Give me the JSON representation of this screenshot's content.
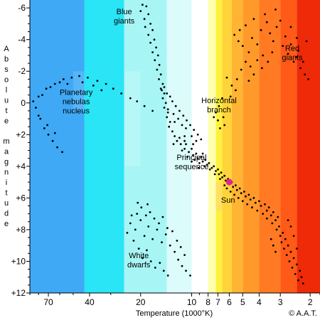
{
  "chart_data": {
    "type": "scatter",
    "title": "",
    "xlabel": "Temperature (1000°K)",
    "ylabel": "Absolute magnitude",
    "ylabel_letters": [
      "A",
      "b",
      "s",
      "o",
      "l",
      "u",
      "t",
      "e",
      "",
      "m",
      "a",
      "g",
      "n",
      "i",
      "t",
      "u",
      "d",
      "e"
    ],
    "x_scale": "log",
    "x_reversed": true,
    "xlim": [
      90,
      1.75
    ],
    "ylim": [
      12,
      -6.5
    ],
    "y_reversed": true,
    "x_ticks": [
      70,
      40,
      20,
      10,
      8,
      7,
      6,
      5,
      4,
      3,
      2
    ],
    "x_tick_labels": [
      "70",
      "40",
      "20",
      "10",
      "8",
      "7",
      "6",
      "5",
      "4",
      "3",
      "2"
    ],
    "y_ticks": [
      -6,
      -4,
      -2,
      0,
      2,
      4,
      6,
      8,
      10,
      12
    ],
    "y_tick_labels": [
      "-6",
      "-4",
      "-2",
      "0",
      "+2",
      "+4",
      "+6",
      "+8",
      "+10",
      "+12"
    ],
    "grid": false,
    "background_bands": [
      {
        "from": 90,
        "to": 43,
        "color": "#3fa9f5"
      },
      {
        "from": 43,
        "to": 25,
        "color": "#29e5f5"
      },
      {
        "from": 25,
        "to": 14,
        "color": "#a8f5f5"
      },
      {
        "from": 14,
        "to": 10,
        "color": "#dcfbfb"
      },
      {
        "from": 10,
        "to": 8,
        "color": "#ffffff"
      },
      {
        "from": 8,
        "to": 7.2,
        "color": "#ffffb0"
      },
      {
        "from": 7.2,
        "to": 6.6,
        "color": "#fff040"
      },
      {
        "from": 6.6,
        "to": 5.8,
        "color": "#ffd33a"
      },
      {
        "from": 5.8,
        "to": 5.0,
        "color": "#ffb433"
      },
      {
        "from": 5.0,
        "to": 4.0,
        "color": "#ff9a2a"
      },
      {
        "from": 4.0,
        "to": 3.0,
        "color": "#ff7a22"
      },
      {
        "from": 3.0,
        "to": 2.4,
        "color": "#ff5a18"
      },
      {
        "from": 2.4,
        "to": 1.75,
        "color": "#ee2a08"
      }
    ],
    "series": [
      {
        "points": [
          [
            19.5,
            -6.2
          ],
          [
            18.5,
            -6.1
          ],
          [
            20,
            -5.8
          ],
          [
            18,
            -5.6
          ],
          [
            19,
            -5.3
          ],
          [
            17.5,
            -5
          ],
          [
            18.8,
            -4.8
          ],
          [
            17,
            -4.6
          ],
          [
            18,
            -4.3
          ],
          [
            16.6,
            -4
          ],
          [
            17.5,
            -3.8
          ],
          [
            16.2,
            -3.5
          ],
          [
            17,
            -3.2
          ],
          [
            15.8,
            -3
          ],
          [
            16.5,
            -2.7
          ],
          [
            15.5,
            -2.4
          ],
          [
            16,
            -2.1
          ],
          [
            15.2,
            -1.8
          ],
          [
            15.6,
            -1.5
          ],
          [
            14.8,
            -1.2
          ],
          [
            15.2,
            -0.9
          ],
          [
            14.5,
            -0.6
          ],
          [
            14.8,
            -0.3
          ],
          [
            14.2,
            0
          ],
          [
            14.5,
            0.3
          ],
          [
            13.8,
            0.6
          ],
          [
            14,
            0.9
          ],
          [
            13.4,
            1.2
          ],
          [
            13.6,
            1.5
          ],
          [
            13,
            1.8
          ],
          [
            12.6,
            2.1
          ],
          [
            12.2,
            2.4
          ],
          [
            11.6,
            2.6
          ],
          [
            11,
            2.9
          ],
          [
            10.4,
            3.1
          ],
          [
            9.8,
            3.3
          ],
          [
            9.2,
            3.5
          ],
          [
            8.6,
            3.7
          ],
          [
            8.1,
            3.9
          ],
          [
            7.6,
            4.1
          ],
          [
            7.2,
            4.3
          ],
          [
            6.9,
            4.5
          ],
          [
            6.6,
            4.7
          ],
          [
            6.3,
            4.9
          ],
          [
            6,
            5.1
          ],
          [
            5.7,
            5.3
          ],
          [
            5.4,
            5.5
          ],
          [
            5.1,
            5.7
          ],
          [
            4.8,
            5.9
          ],
          [
            4.5,
            6.1
          ],
          [
            4.2,
            6.3
          ],
          [
            3.9,
            6.5
          ],
          [
            3.6,
            6.8
          ],
          [
            3.4,
            7.1
          ],
          [
            3.2,
            7.4
          ],
          [
            3.05,
            7.8
          ],
          [
            2.9,
            8.2
          ],
          [
            2.8,
            8.6
          ],
          [
            2.7,
            9
          ],
          [
            2.6,
            9.4
          ],
          [
            2.5,
            9.8
          ],
          [
            2.4,
            10.2
          ],
          [
            2.3,
            10.6
          ],
          [
            2.25,
            11
          ],
          [
            2.2,
            11.4
          ],
          [
            11.8,
            2.2
          ],
          [
            10.8,
            2.6
          ],
          [
            10,
            2.9
          ],
          [
            9.4,
            3.2
          ],
          [
            8.8,
            3.4
          ],
          [
            8.3,
            3.6
          ],
          [
            7.9,
            3.8
          ],
          [
            7.4,
            4
          ],
          [
            7,
            4.2
          ],
          [
            6.7,
            4.4
          ],
          [
            6.4,
            4.6
          ],
          [
            6.1,
            4.8
          ],
          [
            5.8,
            5
          ],
          [
            5.5,
            5.2
          ],
          [
            5.2,
            5.4
          ],
          [
            4.9,
            5.6
          ],
          [
            4.6,
            5.8
          ],
          [
            4.3,
            6
          ],
          [
            4,
            6.2
          ],
          [
            3.7,
            6.4
          ],
          [
            3.5,
            6.6
          ],
          [
            3.3,
            6.9
          ],
          [
            3.1,
            7.2
          ],
          [
            12.8,
            2.6
          ],
          [
            11.4,
            3
          ],
          [
            10.6,
            3.4
          ],
          [
            9.6,
            3.6
          ],
          [
            9,
            3.8
          ],
          [
            8.4,
            4
          ],
          [
            7.8,
            4.2
          ],
          [
            7.3,
            4.5
          ],
          [
            6.8,
            4.8
          ],
          [
            6.4,
            5.2
          ],
          [
            6.2,
            5.4
          ],
          [
            5.9,
            5.6
          ],
          [
            5.6,
            5.8
          ],
          [
            5.3,
            6
          ],
          [
            5,
            6.2
          ],
          [
            4.7,
            6.4
          ],
          [
            4.4,
            6.6
          ],
          [
            4.1,
            6.8
          ],
          [
            3.8,
            7
          ],
          [
            3.6,
            7.3
          ],
          [
            3.35,
            7.6
          ],
          [
            3.15,
            8
          ],
          [
            3,
            8.4
          ],
          [
            2.95,
            8.8
          ],
          [
            2.85,
            9.2
          ],
          [
            2.75,
            9.6
          ],
          [
            2.65,
            10
          ],
          [
            2.55,
            10.4
          ],
          [
            2.45,
            10.8
          ],
          [
            2.35,
            11.2
          ],
          [
            3.4,
            8.6
          ],
          [
            3.3,
            9
          ],
          [
            3.2,
            9.4
          ],
          [
            2.4,
            9.2
          ],
          [
            2.5,
            8.4
          ],
          [
            2.6,
            7.8
          ],
          [
            2.7,
            7.4
          ],
          [
            8.6,
            3.2
          ],
          [
            9.8,
            2.6
          ],
          [
            11,
            2.4
          ],
          [
            10,
            3.7
          ],
          [
            9.1,
            4.1
          ]
        ]
      },
      {
        "points": [
          [
            14.5,
            -1
          ],
          [
            14,
            -0.6
          ],
          [
            13.4,
            -0.4
          ],
          [
            13,
            -0.1
          ],
          [
            12.4,
            0.2
          ],
          [
            11.8,
            0.5
          ],
          [
            11.2,
            0.8
          ],
          [
            10.7,
            1.1
          ],
          [
            10.2,
            1.4
          ],
          [
            9.7,
            1.7
          ],
          [
            9.2,
            2
          ],
          [
            8.8,
            2.3
          ],
          [
            12.8,
            0.7
          ],
          [
            12,
            1
          ],
          [
            11.4,
            1.4
          ],
          [
            10.8,
            1.6
          ],
          [
            10,
            2.1
          ],
          [
            9.4,
            2.4
          ],
          [
            15,
            -0.8
          ],
          [
            13.8,
            0.4
          ],
          [
            12.6,
            1.2
          ],
          [
            11,
            2.1
          ]
        ]
      },
      {
        "points": [
          [
            80,
            -0.4
          ],
          [
            72,
            -0.9
          ],
          [
            64,
            -1.2
          ],
          [
            57,
            -1.5
          ],
          [
            51,
            -1.6
          ],
          [
            46,
            -1.7
          ],
          [
            41,
            -1.6
          ],
          [
            36,
            -1.4
          ],
          [
            32,
            -1.2
          ],
          [
            29,
            -0.9
          ],
          [
            26,
            -0.6
          ],
          [
            23,
            -0.3
          ],
          [
            21,
            -0.1
          ],
          [
            19,
            0.2
          ],
          [
            17,
            0.5
          ],
          [
            83,
            0.3
          ],
          [
            78,
            1
          ],
          [
            74,
            1.6
          ],
          [
            70,
            2
          ],
          [
            66,
            2.4
          ],
          [
            62,
            2.8
          ],
          [
            58,
            3.1
          ],
          [
            86,
            -0.1
          ],
          [
            76,
            -0.5
          ],
          [
            68,
            -1
          ],
          [
            60,
            -1.3
          ],
          [
            54,
            -1.2
          ],
          [
            44,
            -1.3
          ],
          [
            38,
            -1.1
          ],
          [
            34,
            -0.8
          ],
          [
            80,
            0.8
          ],
          [
            71,
            1.4
          ],
          [
            64,
            1.9
          ]
        ]
      },
      {
        "points": [
          [
            23,
            7.6
          ],
          [
            21.5,
            8
          ],
          [
            20,
            7.4
          ],
          [
            19,
            8.4
          ],
          [
            18,
            7.8
          ],
          [
            17,
            8.6
          ],
          [
            16,
            8
          ],
          [
            15,
            8.8
          ],
          [
            14.2,
            8.3
          ],
          [
            13.4,
            9
          ],
          [
            12.6,
            9.4
          ],
          [
            12,
            9.9
          ],
          [
            11.4,
            10.3
          ],
          [
            10.8,
            10.6
          ],
          [
            10.2,
            10.9
          ],
          [
            22,
            8.7
          ],
          [
            20.5,
            9.2
          ],
          [
            19.5,
            9.8
          ],
          [
            18.4,
            9.3
          ],
          [
            17.4,
            10
          ],
          [
            16.4,
            10.4
          ],
          [
            15.4,
            10.1
          ],
          [
            14.6,
            10.6
          ],
          [
            13.8,
            10.9
          ],
          [
            21,
            7
          ],
          [
            19.8,
            6.6
          ],
          [
            18.6,
            7.1
          ],
          [
            17.6,
            6.9
          ],
          [
            16.6,
            7.3
          ],
          [
            15.6,
            7.6
          ],
          [
            14.8,
            7.2
          ],
          [
            13.9,
            7.9
          ],
          [
            13,
            8.1
          ],
          [
            12.2,
            8.7
          ],
          [
            11.6,
            9.1
          ],
          [
            11,
            9.6
          ],
          [
            24,
            8.2
          ],
          [
            22.6,
            7.1
          ],
          [
            20.8,
            6.3
          ],
          [
            18.2,
            6.4
          ]
        ]
      },
      {
        "points": [
          [
            5.6,
            -4.3
          ],
          [
            5.3,
            -3.9
          ],
          [
            5,
            -3.6
          ],
          [
            4.6,
            -3.2
          ],
          [
            4.4,
            -4.1
          ],
          [
            4.1,
            -3.7
          ],
          [
            3.9,
            -4.6
          ],
          [
            3.6,
            -5.1
          ],
          [
            3.45,
            -4.4
          ],
          [
            3.3,
            -3.9
          ],
          [
            3.15,
            -4.8
          ],
          [
            3,
            -5.2
          ],
          [
            2.9,
            -3.6
          ],
          [
            2.8,
            -4.2
          ],
          [
            2.7,
            -3.1
          ],
          [
            2.6,
            -3.7
          ],
          [
            2.5,
            -2.6
          ],
          [
            2.42,
            -2.9
          ],
          [
            2.35,
            -3.3
          ],
          [
            2.28,
            -2.2
          ],
          [
            2.2,
            -2.6
          ],
          [
            2.15,
            -1.8
          ],
          [
            2.1,
            -3.9
          ],
          [
            2.05,
            -1.5
          ],
          [
            6.2,
            -1.6
          ],
          [
            5.8,
            -1.1
          ],
          [
            5.5,
            -0.8
          ],
          [
            5.9,
            -0.4
          ],
          [
            5.4,
            -1.5
          ],
          [
            5.1,
            -2.1
          ],
          [
            4.8,
            -2.6
          ],
          [
            4.5,
            -2.3
          ],
          [
            4.3,
            -1.8
          ],
          [
            4.1,
            -2.7
          ],
          [
            3.8,
            -3
          ],
          [
            3.55,
            -2.6
          ],
          [
            3.35,
            -3.2
          ],
          [
            6.6,
            -0.3
          ],
          [
            6.9,
            0.2
          ],
          [
            7.2,
            0.6
          ],
          [
            6.5,
            0.9
          ],
          [
            7,
            1.1
          ],
          [
            6.4,
            1.4
          ],
          [
            6.8,
            1.6
          ],
          [
            7.4,
            0.9
          ],
          [
            5.2,
            -4.6
          ],
          [
            4.8,
            -4.9
          ],
          [
            4.3,
            -5.3
          ],
          [
            3.7,
            -5.6
          ],
          [
            3.2,
            -5.9
          ],
          [
            2.6,
            -4.8
          ],
          [
            2.4,
            -4.1
          ],
          [
            3.85,
            -2.2
          ],
          [
            4.6,
            -1.4
          ]
        ]
      }
    ],
    "highlight_point": {
      "label": "Sun",
      "x": 6,
      "y": 5,
      "color": "#e0248e"
    },
    "annotations": [
      {
        "lines": [
          "Blue",
          "giants"
        ],
        "x": 25,
        "y": -5.6,
        "anchor": "middle"
      },
      {
        "lines": [
          "Red",
          "giants"
        ],
        "x": 2.55,
        "y": -3.3,
        "anchor": "middle"
      },
      {
        "lines": [
          "Horizontal",
          "branch"
        ],
        "x": 6.9,
        "y": 0,
        "anchor": "middle"
      },
      {
        "lines": [
          "Planetary",
          "nebulas",
          "nucleus"
        ],
        "x": 48,
        "y": -0.5,
        "anchor": "middle"
      },
      {
        "lines": [
          "Principal",
          "sequence"
        ],
        "x": 10,
        "y": 3.6,
        "anchor": "middle"
      },
      {
        "lines": [
          "Sun"
        ],
        "x": 6.1,
        "y": 6.3,
        "anchor": "middle"
      },
      {
        "lines": [
          "White",
          "dwarfs"
        ],
        "x": 20.5,
        "y": 9.8,
        "anchor": "middle"
      }
    ],
    "copyright": "© A.A.T."
  }
}
